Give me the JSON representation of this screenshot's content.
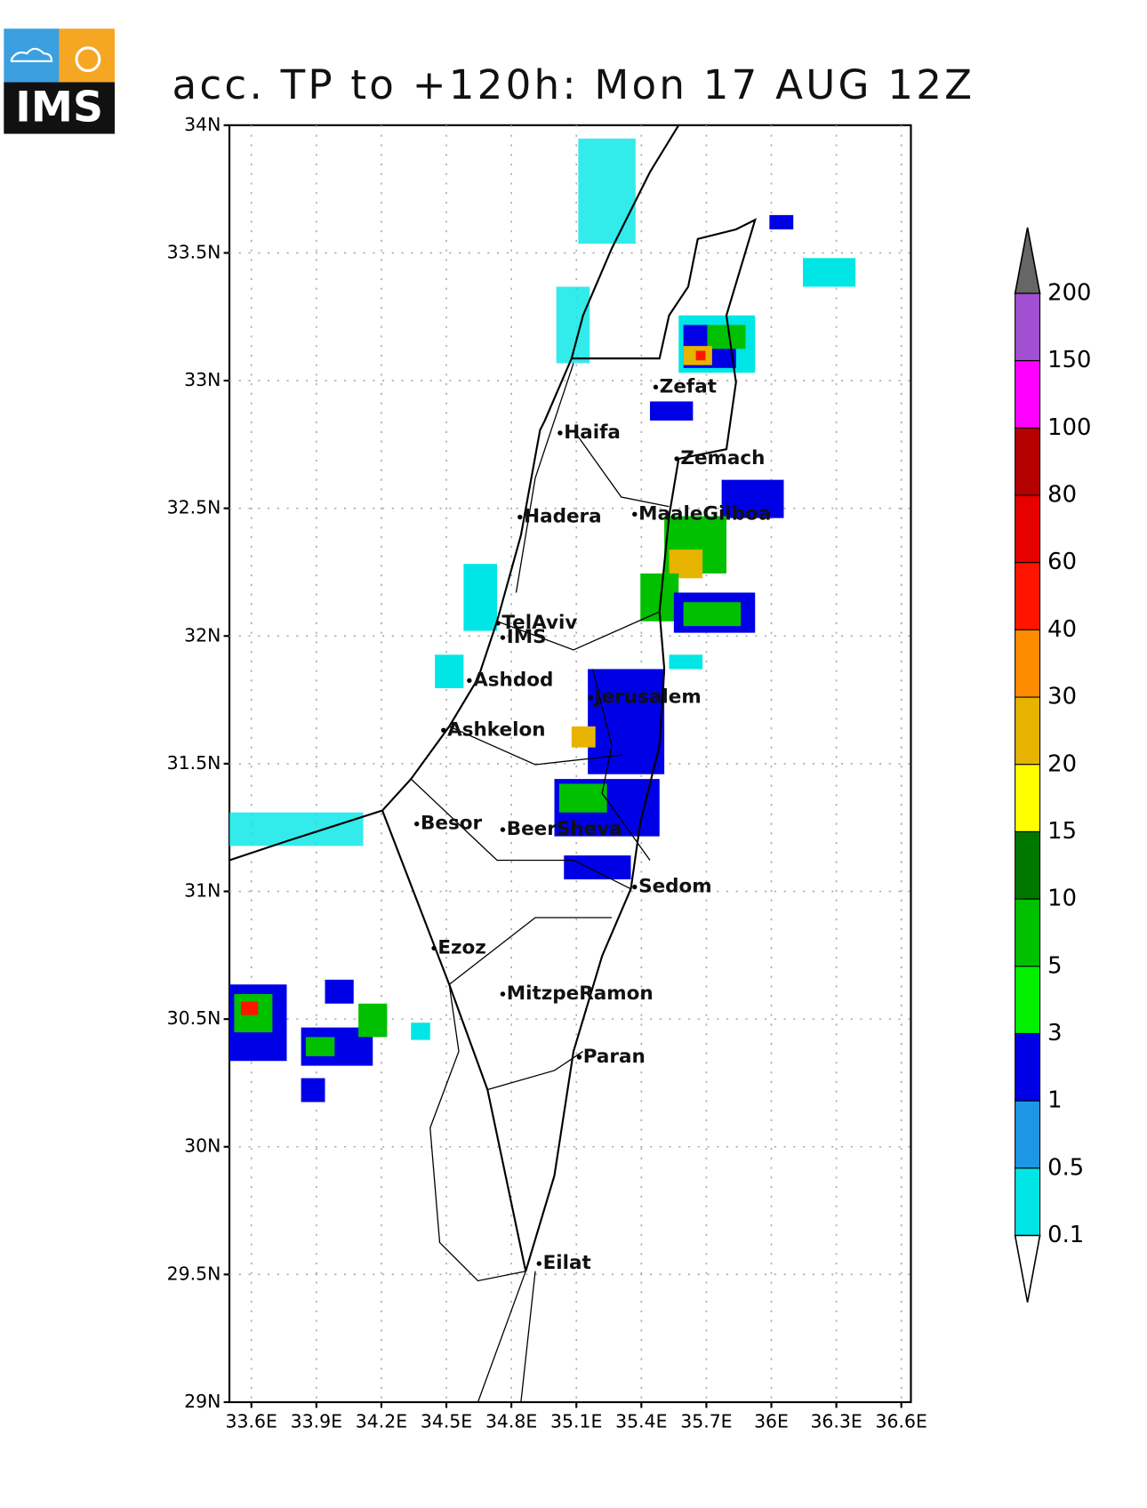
{
  "logo": {
    "text": "IMS"
  },
  "title": "acc. TP to +120h: Mon 17 AUG 12Z",
  "lat_labels": [
    "34N",
    "33.5N",
    "33N",
    "32.5N",
    "32N",
    "31.5N",
    "31N",
    "30.5N",
    "30N",
    "29.5N",
    "29N"
  ],
  "lon_labels": [
    "33.6E",
    "33.9E",
    "34.2E",
    "34.5E",
    "34.8E",
    "35.1E",
    "35.4E",
    "35.7E",
    "36E",
    "36.3E",
    "36.6E"
  ],
  "cities": [
    "Zefat",
    "Haifa",
    "Zemach",
    "Hadera",
    "MaaleGilboa",
    "TelAviv",
    "IMS",
    "Ashdod",
    "Jerusalem",
    "Ashkelon",
    "Besor",
    "BeerSheva",
    "Sedom",
    "Ezoz",
    "MitzpeRamon",
    "Paran",
    "Eilat"
  ],
  "colorbar": {
    "levels": [
      200,
      150,
      100,
      80,
      60,
      40,
      30,
      20,
      15,
      10,
      5,
      3,
      1,
      0.5,
      0.1
    ],
    "colors": [
      "#a050d0",
      "#ff00ff",
      "#b40000",
      "#e60000",
      "#ff1400",
      "#ff8c00",
      "#e6b400",
      "#ffff00",
      "#007800",
      "#00c000",
      "#00f000",
      "#0000e6",
      "#1e96e6",
      "#00e6e6"
    ]
  }
}
